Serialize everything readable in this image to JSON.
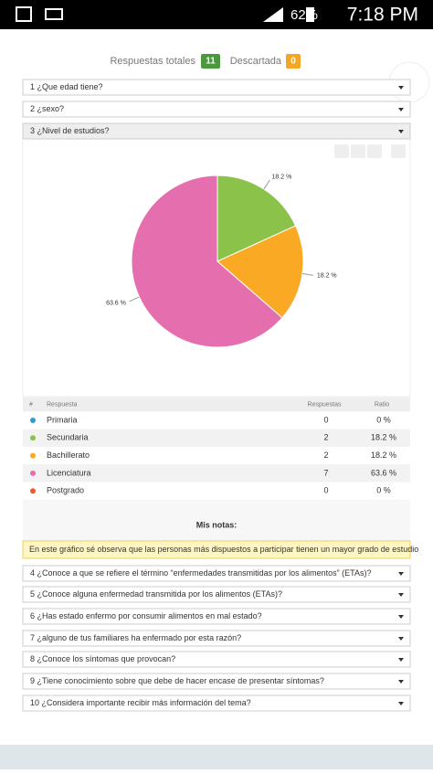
{
  "status_bar": {
    "battery": "62%",
    "time": "7:18 PM"
  },
  "summary": {
    "total_label": "Respuestas totales",
    "total": 11,
    "discarded_label": "Descartada",
    "discarded": 0
  },
  "questions": [
    "1 ¿Que edad tiene?",
    "2 ¿sexo?",
    "3 ¿Nivel de estudios?",
    "4 ¿Conoce a que se refiere el término “enfermedades transmitidas por los alimentos” (ETAs)?",
    "5 ¿Conoce alguna enfermedad transmitida por los alimentos (ETAs)?",
    "6 ¿Has estado enfermo por consumir alimentos en mal estado?",
    "7 ¿alguno de tus familiares ha enfermado por esta razón?",
    "8 ¿Conoce los síntomas que provocan?",
    "9 ¿Tiene conocimiento sobre que debe de hacer encase de presentar síntomas?",
    "10 ¿Considera importante recibir más información del tema?"
  ],
  "chart_data": {
    "type": "pie",
    "categories": [
      "Primaria",
      "Secundaria",
      "Bachillerato",
      "Licenciatura",
      "Postgrado"
    ],
    "values": [
      0,
      18.2,
      18.2,
      63.6,
      0
    ],
    "value_labels": [
      null,
      "18.2 %",
      "18.2 %",
      "63.6 %",
      null
    ],
    "colors": [
      "#2f9bd6",
      "#8bc34a",
      "#faa925",
      "#e56fae",
      "#f05a28"
    ]
  },
  "table": {
    "columns": [
      "#",
      "Respuesta",
      "Respuestas",
      "Ratio"
    ],
    "rows": [
      [
        0,
        "0 %"
      ],
      [
        2,
        "18.2 %"
      ],
      [
        2,
        "18.2 %"
      ],
      [
        7,
        "63.6 %"
      ],
      [
        0,
        "0 %"
      ]
    ]
  },
  "notes": {
    "title": "Mis notas:",
    "text": "En este gráfico sé observa que las personas más dispuestos a participar tienen un mayor grado de estudio"
  }
}
